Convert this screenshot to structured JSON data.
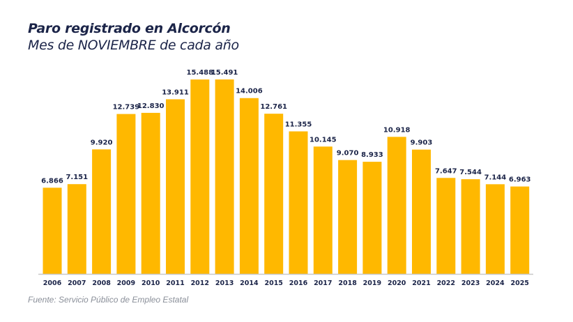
{
  "chart_data": {
    "type": "bar",
    "title": "Paro registrado en Alcorcón",
    "subtitle": "Mes de NOVIEMBRE de cada año",
    "source": "Fuente: Servicio Público de Empleo Estatal",
    "categories": [
      "2006",
      "2007",
      "2008",
      "2009",
      "2010",
      "2011",
      "2012",
      "2013",
      "2014",
      "2015",
      "2016",
      "2017",
      "2018",
      "2019",
      "2020",
      "2021",
      "2022",
      "2023",
      "2024",
      "2025"
    ],
    "values": [
      6866,
      7151,
      9920,
      12739,
      12830,
      13911,
      15488,
      15491,
      14006,
      12761,
      11355,
      10145,
      9070,
      8933,
      10918,
      9903,
      7647,
      7544,
      7144,
      6963
    ],
    "labels": [
      "6.866",
      "7.151",
      "9.920",
      "12.739",
      "12.830",
      "13.911",
      "15.488",
      "15.491",
      "14.006",
      "12.761",
      "11.355",
      "10.145",
      "9.070",
      "8.933",
      "10.918",
      "9.903",
      "7.647",
      "7.544",
      "7.144",
      "6.963"
    ],
    "ylim": [
      0,
      15491
    ],
    "grid": false,
    "legend": "none",
    "bar_color": "#ffb800",
    "text_color": "#1b2448"
  }
}
